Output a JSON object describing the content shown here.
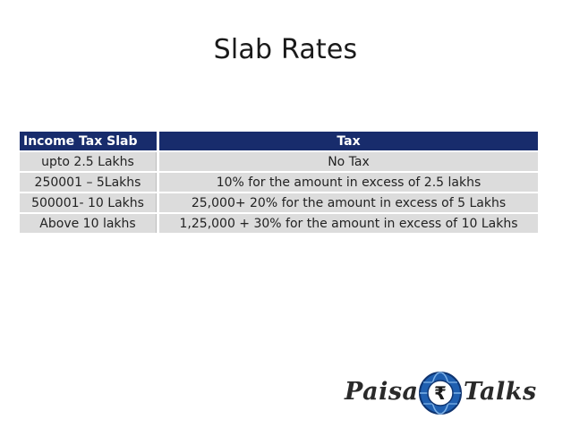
{
  "slide": {
    "title": "Slab Rates"
  },
  "table": {
    "headers": [
      "Income Tax Slab",
      "Tax"
    ],
    "rows": [
      [
        "upto 2.5 Lakhs",
        "No Tax"
      ],
      [
        "250001 – 5Lakhs",
        "10% for the amount in excess of 2.5 lakhs"
      ],
      [
        "500001- 10 Lakhs",
        "25,000+ 20% for the amount in excess of 5 Lakhs"
      ],
      [
        "Above 10 lakhs",
        "1,25,000 + 30% for the amount in excess of 10 Lakhs"
      ]
    ],
    "header_color": "#182c6c",
    "row_color": "#dcdcdc"
  },
  "logo": {
    "word_left": "Paisa",
    "word_right": "Talks",
    "icon": "rupee-globe-icon",
    "symbol": "₹"
  }
}
